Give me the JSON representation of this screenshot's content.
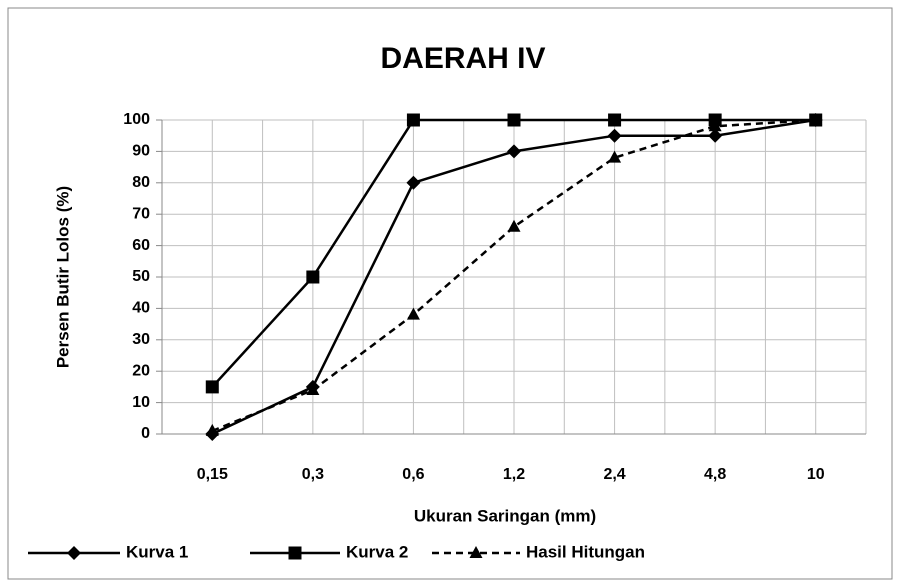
{
  "chart_data": {
    "type": "line",
    "title": "DAERAH IV",
    "x_label": "Ukuran Saringan (mm)",
    "y_label": "Persen Butir Lolos (%)",
    "categories": [
      "0,15",
      "0,3",
      "0,6",
      "1,2",
      "2,4",
      "4,8",
      "10"
    ],
    "series": [
      {
        "name": "Kurva 1",
        "color": "#000000",
        "marker": "diamond",
        "dashed": false,
        "values": [
          0,
          15,
          80,
          90,
          95,
          95,
          100
        ]
      },
      {
        "name": "Kurva 2",
        "color": "#000000",
        "marker": "square",
        "dashed": false,
        "values": [
          15,
          50,
          100,
          100,
          100,
          100,
          100
        ]
      },
      {
        "name": "Hasil Hitungan",
        "color": "#000000",
        "marker": "triangle",
        "dashed": true,
        "values": [
          1,
          14,
          38,
          66,
          88,
          98,
          100
        ]
      }
    ],
    "ylim": [
      0,
      100
    ],
    "yticks": [
      0,
      10,
      20,
      30,
      40,
      50,
      60,
      70,
      80,
      90,
      100
    ],
    "grid": true,
    "legend": "bottom"
  }
}
